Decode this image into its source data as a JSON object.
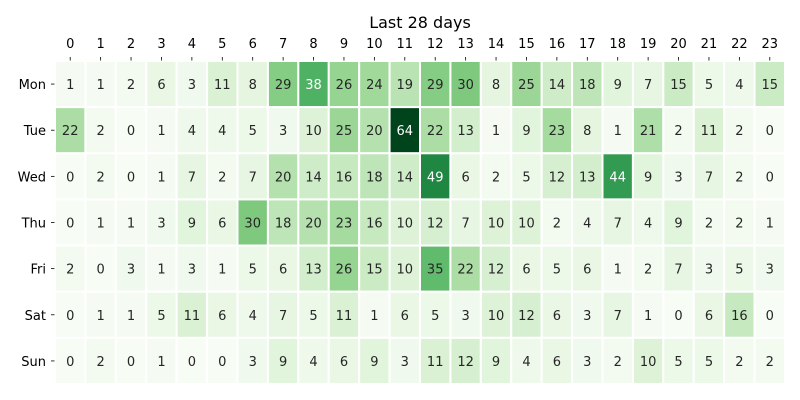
{
  "chart_data": {
    "type": "heatmap",
    "title": "Last 28 days",
    "x_labels": [
      "0",
      "1",
      "2",
      "3",
      "4",
      "5",
      "6",
      "7",
      "8",
      "9",
      "10",
      "11",
      "12",
      "13",
      "14",
      "15",
      "16",
      "17",
      "18",
      "19",
      "20",
      "21",
      "22",
      "23"
    ],
    "y_labels": [
      "Mon",
      "Tue",
      "Wed",
      "Thu",
      "Fri",
      "Sat",
      "Sun"
    ],
    "values": [
      [
        1,
        1,
        2,
        6,
        3,
        11,
        8,
        29,
        38,
        26,
        24,
        19,
        29,
        30,
        8,
        25,
        14,
        18,
        9,
        7,
        15,
        5,
        4,
        15
      ],
      [
        22,
        2,
        0,
        1,
        4,
        4,
        5,
        3,
        10,
        25,
        20,
        64,
        22,
        13,
        1,
        9,
        23,
        8,
        1,
        21,
        2,
        11,
        2,
        0
      ],
      [
        0,
        2,
        0,
        1,
        7,
        2,
        7,
        20,
        14,
        16,
        18,
        14,
        49,
        6,
        2,
        5,
        12,
        13,
        44,
        9,
        3,
        7,
        2,
        0
      ],
      [
        0,
        1,
        1,
        3,
        9,
        6,
        30,
        18,
        20,
        23,
        16,
        10,
        12,
        7,
        10,
        10,
        2,
        4,
        7,
        4,
        9,
        2,
        2,
        1
      ],
      [
        2,
        0,
        3,
        1,
        3,
        1,
        5,
        6,
        13,
        26,
        15,
        10,
        35,
        22,
        12,
        6,
        5,
        6,
        1,
        2,
        7,
        3,
        5,
        3
      ],
      [
        0,
        1,
        1,
        5,
        11,
        6,
        4,
        7,
        5,
        11,
        1,
        6,
        5,
        3,
        10,
        12,
        6,
        3,
        7,
        1,
        0,
        6,
        16,
        0
      ],
      [
        0,
        2,
        0,
        1,
        0,
        0,
        3,
        9,
        4,
        6,
        9,
        3,
        11,
        12,
        9,
        4,
        6,
        3,
        2,
        10,
        5,
        5,
        2,
        2
      ]
    ],
    "colormap": "Greens",
    "x_axis_position": "top",
    "cell_lines_color": "#ffffff",
    "colorbar": false
  }
}
